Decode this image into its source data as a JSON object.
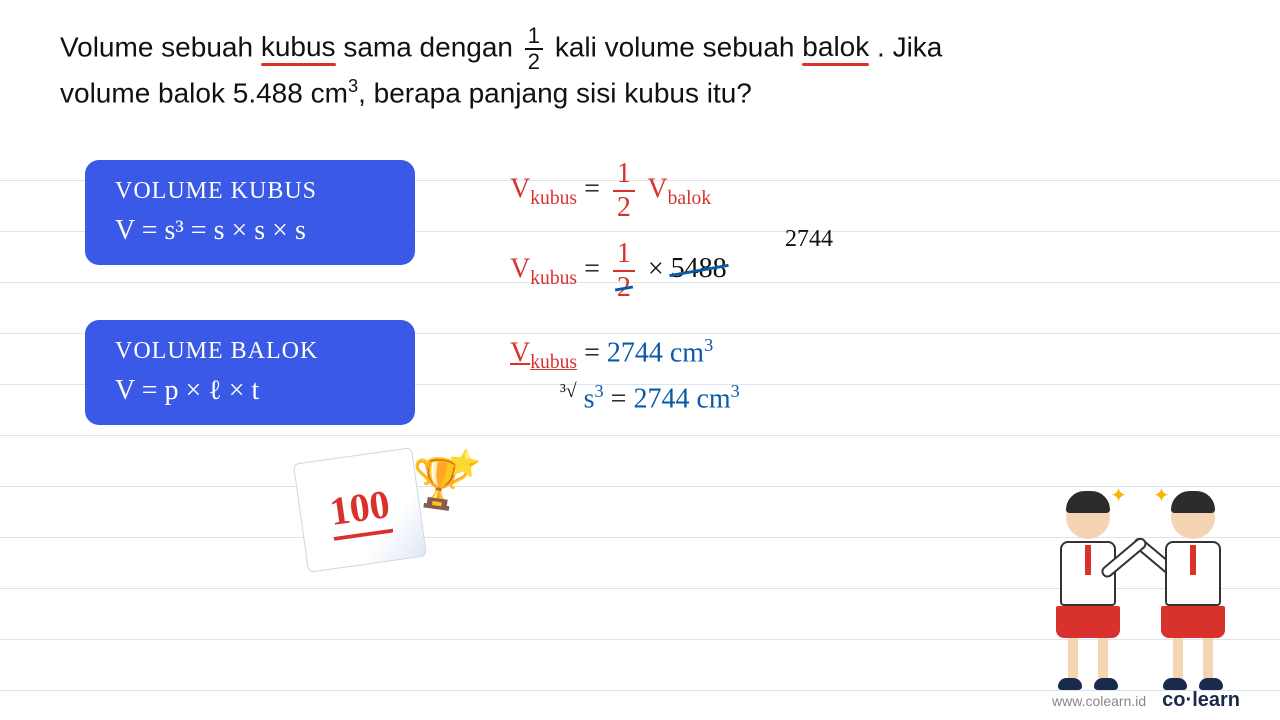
{
  "problem": {
    "l1_a": "Volume sebuah ",
    "kubus": "kubus",
    "l1_b": " sama dengan ",
    "frac_n": "1",
    "frac_d": "2",
    "l1_c": " kali volume sebuah ",
    "balok": "balok",
    "l1_d": ". Jika",
    "l2": "volume balok 5.488 cm",
    "l2_sup": "3",
    "l2_b": ", berapa  panjang sisi kubus itu?",
    "underline_color": "#d9322d"
  },
  "cards": {
    "bg": "#3959e6",
    "kubus_title": "VOLUME KUBUS",
    "kubus_eq": "V = s³ = s × s × s",
    "balok_title": "VOLUME BALOK",
    "balok_eq": "V = p × ℓ × t",
    "font": "Comic Sans MS",
    "title_fontsize": 24,
    "eq_fontsize": 28
  },
  "work": {
    "colors": {
      "red": "#d9322d",
      "blue": "#0b5aa8",
      "black": "#111"
    },
    "font": "Comic Sans MS",
    "line1": {
      "lhs": "V",
      "lhs_sub": "kubus",
      "eq": " = ",
      "frac_n": "1",
      "frac_d": "2",
      "rhs": " V",
      "rhs_sub": "balok"
    },
    "intermediate": "2744",
    "line2": {
      "lhs": "V",
      "lhs_sub": "kubus",
      "eq": " = ",
      "frac_n": "1",
      "frac_d": "2",
      "times": " × ",
      "val": "5488"
    },
    "line3": {
      "lhs": "V",
      "lhs_sub": "kubus",
      "eq": " = ",
      "rhs": "2744 cm",
      "sup": "3"
    },
    "line4": {
      "root_pre": "³√",
      "lhs": "s",
      "lhs_sup": "3",
      "eq": " = ",
      "rhs": "2744 cm",
      "sup": "3"
    }
  },
  "sticker": {
    "score": "100",
    "trophy": "🏆",
    "star": "⭐",
    "score_color": "#d9322d"
  },
  "footer": {
    "url": "www.colearn.id",
    "brand_a": "co",
    "brand_dot": "·",
    "brand_b": "learn"
  }
}
